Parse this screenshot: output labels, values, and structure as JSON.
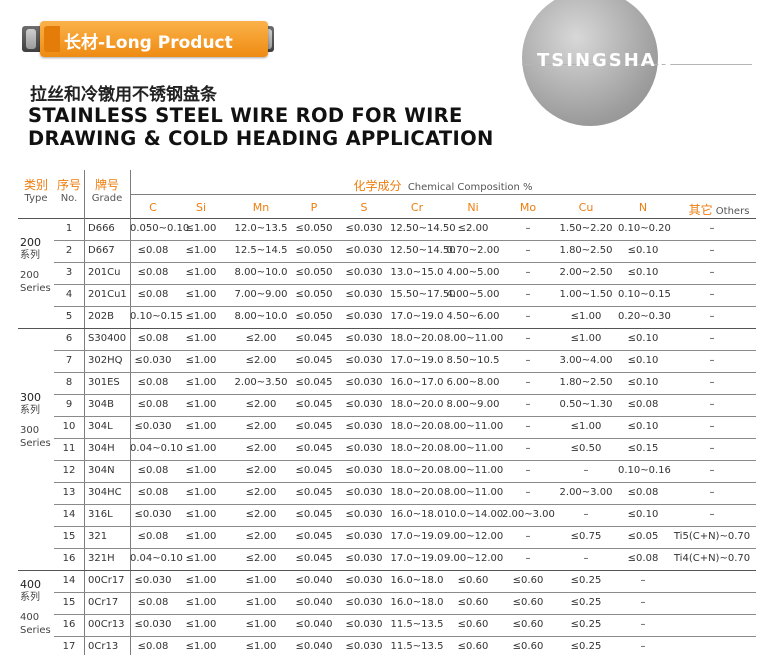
{
  "banner": {
    "title": "长材-Long Product"
  },
  "logo": {
    "text": "TSINGSHAN"
  },
  "heading": {
    "cn": "拉丝和冷镦用不锈钢盘条",
    "en_line1": "STAINLESS STEEL WIRE ROD FOR WIRE",
    "en_line2": "DRAWING & COLD HEADING APPLICATION"
  },
  "table": {
    "headers": {
      "type_cn": "类别",
      "type_en": "Type",
      "no_cn": "序号",
      "no_en": "No.",
      "grade_cn": "牌号",
      "grade_en": "Grade",
      "chem_cn": "化学成分",
      "chem_en": "Chemical Composition  %",
      "others_cn": "其它",
      "others_en": "Others"
    },
    "elements": [
      "C",
      "Si",
      "Mn",
      "P",
      "S",
      "Cr",
      "Ni",
      "Mo",
      "Cu",
      "N"
    ],
    "groups": [
      {
        "num": "200",
        "cn": "系列",
        "num2": "200",
        "en": "Series"
      },
      {
        "num": "300",
        "cn": "系列",
        "num2": "300",
        "en": "Series"
      },
      {
        "num": "400",
        "cn": "系列",
        "num2": "400",
        "en": "Series"
      }
    ],
    "rows": [
      [
        "1",
        "D666",
        "0.050~0.10",
        "≤1.00",
        "12.0~13.5",
        "≤0.050",
        "≤0.030",
        "12.50~14.50",
        "≤2.00",
        "–",
        "1.50~2.20",
        "0.10~0.20",
        "–"
      ],
      [
        "2",
        "D667",
        "≤0.08",
        "≤1.00",
        "12.5~14.5",
        "≤0.050",
        "≤0.030",
        "12.50~14.50",
        "0.70~2.00",
        "–",
        "1.80~2.50",
        "≤0.10",
        "–"
      ],
      [
        "3",
        "201Cu",
        "≤0.08",
        "≤1.00",
        "8.00~10.0",
        "≤0.050",
        "≤0.030",
        "13.0~15.0",
        "4.00~5.00",
        "–",
        "2.00~2.50",
        "≤0.10",
        "–"
      ],
      [
        "4",
        "201Cu1",
        "≤0.08",
        "≤1.00",
        "7.00~9.00",
        "≤0.050",
        "≤0.030",
        "15.50~17.50",
        "4.00~5.00",
        "–",
        "1.00~1.50",
        "0.10~0.15",
        "–"
      ],
      [
        "5",
        "202B",
        "0.10~0.15",
        "≤1.00",
        "8.00~10.0",
        "≤0.050",
        "≤0.030",
        "17.0~19.0",
        "4.50~6.00",
        "–",
        "≤1.00",
        "0.20~0.30",
        "–"
      ],
      [
        "6",
        "S30400",
        "≤0.08",
        "≤1.00",
        "≤2.00",
        "≤0.045",
        "≤0.030",
        "18.0~20.0",
        "8.00~11.00",
        "–",
        "≤1.00",
        "≤0.10",
        "–"
      ],
      [
        "7",
        "302HQ",
        "≤0.030",
        "≤1.00",
        "≤2.00",
        "≤0.045",
        "≤0.030",
        "17.0~19.0",
        "8.50~10.5",
        "–",
        "3.00~4.00",
        "≤0.10",
        "–"
      ],
      [
        "8",
        "301ES",
        "≤0.08",
        "≤1.00",
        "2.00~3.50",
        "≤0.045",
        "≤0.030",
        "16.0~17.0",
        "6.00~8.00",
        "–",
        "1.80~2.50",
        "≤0.10",
        "–"
      ],
      [
        "9",
        "304B",
        "≤0.08",
        "≤1.00",
        "≤2.00",
        "≤0.045",
        "≤0.030",
        "18.0~20.0",
        "8.00~9.00",
        "–",
        "0.50~1.30",
        "≤0.08",
        "–"
      ],
      [
        "10",
        "304L",
        "≤0.030",
        "≤1.00",
        "≤2.00",
        "≤0.045",
        "≤0.030",
        "18.0~20.0",
        "8.00~11.00",
        "–",
        "≤1.00",
        "≤0.10",
        "–"
      ],
      [
        "11",
        "304H",
        "0.04~0.10",
        "≤1.00",
        "≤2.00",
        "≤0.045",
        "≤0.030",
        "18.0~20.0",
        "8.00~11.00",
        "–",
        "≤0.50",
        "≤0.15",
        "–"
      ],
      [
        "12",
        "304N",
        "≤0.08",
        "≤1.00",
        "≤2.00",
        "≤0.045",
        "≤0.030",
        "18.0~20.0",
        "8.00~11.00",
        "–",
        "–",
        "0.10~0.16",
        "–"
      ],
      [
        "13",
        "304HC",
        "≤0.08",
        "≤1.00",
        "≤2.00",
        "≤0.045",
        "≤0.030",
        "18.0~20.0",
        "8.00~11.00",
        "–",
        "2.00~3.00",
        "≤0.08",
        "–"
      ],
      [
        "14",
        "316L",
        "≤0.030",
        "≤1.00",
        "≤2.00",
        "≤0.045",
        "≤0.030",
        "16.0~18.0",
        "10.0~14.00",
        "2.00~3.00",
        "–",
        "≤0.10",
        "–"
      ],
      [
        "15",
        "321",
        "≤0.08",
        "≤1.00",
        "≤2.00",
        "≤0.045",
        "≤0.030",
        "17.0~19.0",
        "9.00~12.00",
        "–",
        "≤0.75",
        "≤0.05",
        "Ti5(C+N)~0.70"
      ],
      [
        "16",
        "321H",
        "0.04~0.10",
        "≤1.00",
        "≤2.00",
        "≤0.045",
        "≤0.030",
        "17.0~19.0",
        "9.00~12.00",
        "–",
        "–",
        "≤0.08",
        "Ti4(C+N)~0.70"
      ],
      [
        "14",
        "00Cr17",
        "≤0.030",
        "≤1.00",
        "≤1.00",
        "≤0.040",
        "≤0.030",
        "16.0~18.0",
        "≤0.60",
        "≤0.60",
        "≤0.25",
        "–",
        ""
      ],
      [
        "15",
        "0Cr17",
        "≤0.08",
        "≤1.00",
        "≤1.00",
        "≤0.040",
        "≤0.030",
        "16.0~18.0",
        "≤0.60",
        "≤0.60",
        "≤0.25",
        "–",
        ""
      ],
      [
        "16",
        "00Cr13",
        "≤0.030",
        "≤1.00",
        "≤1.00",
        "≤0.040",
        "≤0.030",
        "11.5~13.5",
        "≤0.60",
        "≤0.60",
        "≤0.25",
        "–",
        ""
      ],
      [
        "17",
        "0Cr13",
        "≤0.08",
        "≤1.00",
        "≤1.00",
        "≤0.040",
        "≤0.030",
        "11.5~13.5",
        "≤0.60",
        "≤0.60",
        "≤0.25",
        "–",
        ""
      ]
    ]
  }
}
